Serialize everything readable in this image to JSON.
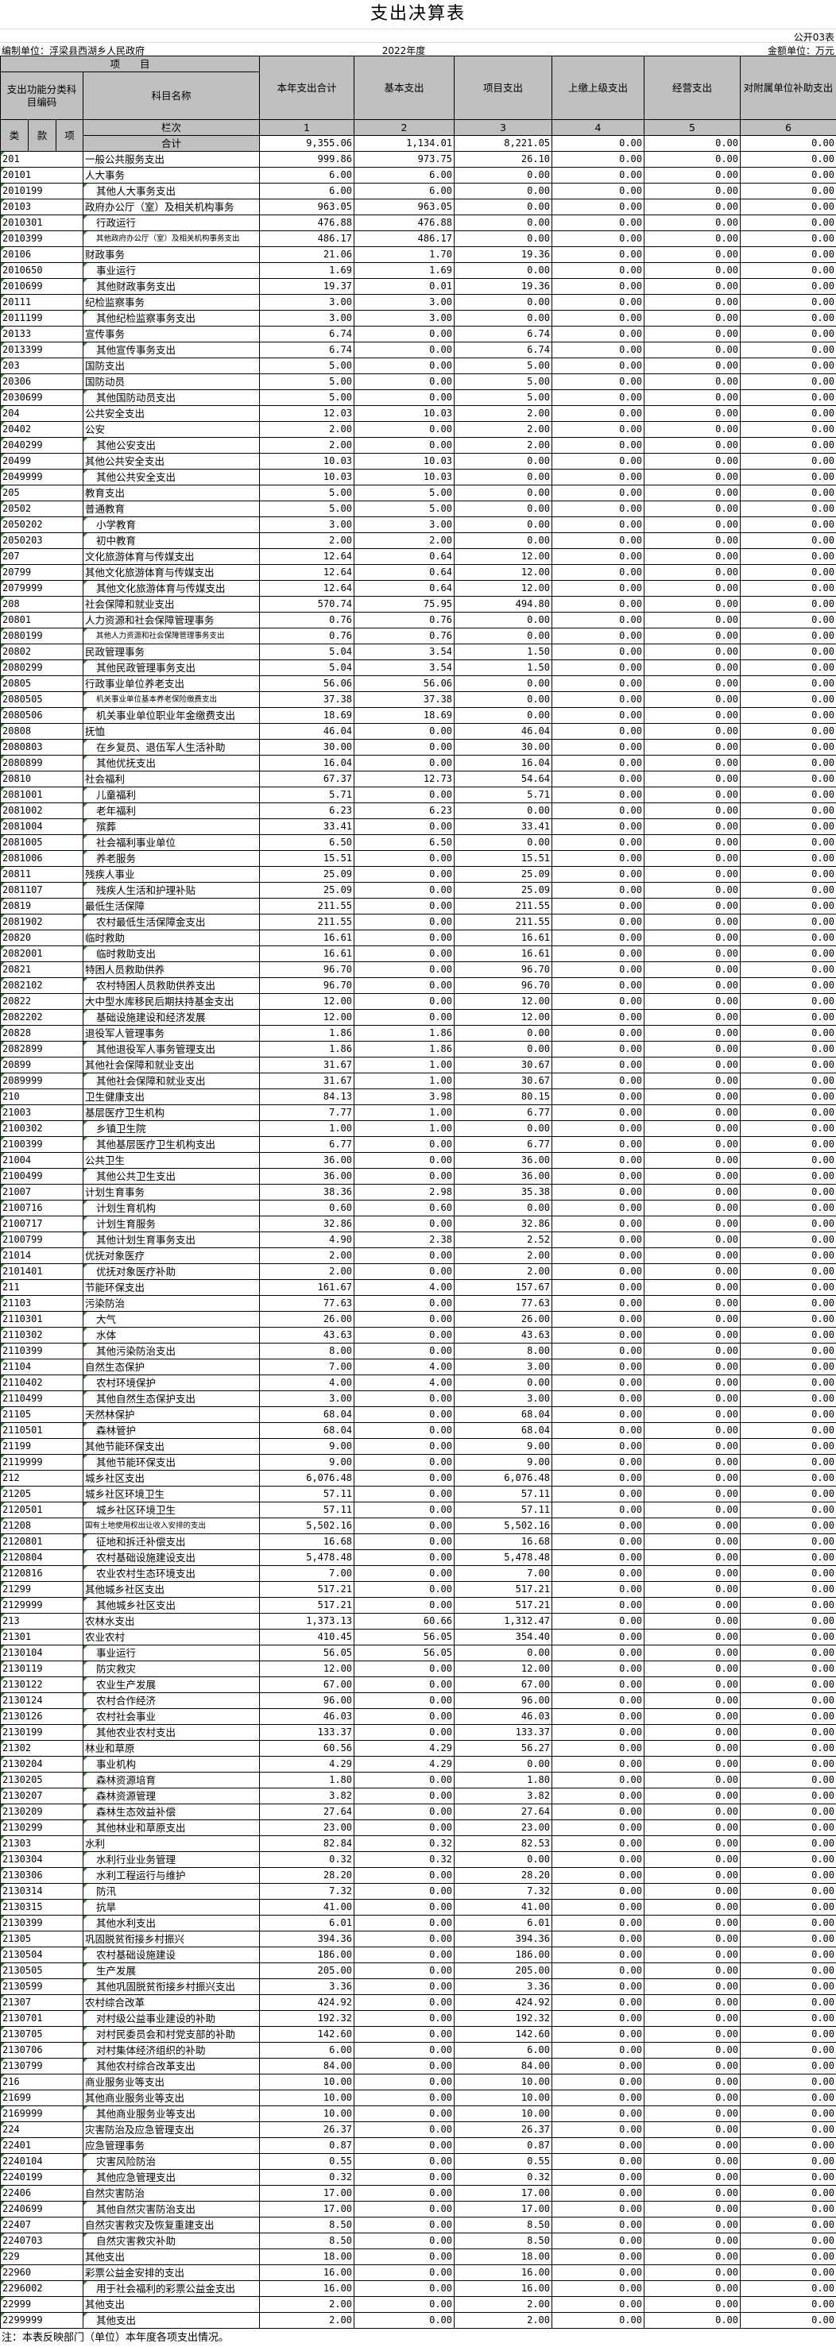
{
  "title": "支出决算表",
  "form_no": "公开03表",
  "org_label": "编制单位：浮梁县西湖乡人民政府",
  "year": "2022年度",
  "money_unit": "金额单位：万元",
  "header": {
    "project": "项　　目",
    "code_group": "支出功能分类科目编码",
    "name": "科目名称",
    "columns": [
      "本年支出合计",
      "基本支出",
      "项目支出",
      "上缴上级支出",
      "经营支出",
      "对附属单位补助支出"
    ],
    "lei": "类",
    "kuan": "款",
    "xiang": "项",
    "lanci": "栏次",
    "col_indices": [
      "1",
      "2",
      "3",
      "4",
      "5",
      "6"
    ]
  },
  "total": {
    "label": "合计",
    "values": [
      "9,355.06",
      "1,134.01",
      "8,221.05",
      "0.00",
      "0.00",
      "0.00"
    ]
  },
  "rows": [
    [
      "201",
      "一般公共服务支出",
      "999.86",
      "973.75",
      "26.10",
      "0.00",
      "0.00",
      "0.00"
    ],
    [
      "20101",
      "人大事务",
      "6.00",
      "6.00",
      "0.00",
      "0.00",
      "0.00",
      "0.00"
    ],
    [
      "2010199",
      "其他人大事务支出",
      "6.00",
      "6.00",
      "0.00",
      "0.00",
      "0.00",
      "0.00"
    ],
    [
      "20103",
      "政府办公厅（室）及相关机构事务",
      "963.05",
      "963.05",
      "0.00",
      "0.00",
      "0.00",
      "0.00"
    ],
    [
      "2010301",
      "行政运行",
      "476.88",
      "476.88",
      "0.00",
      "0.00",
      "0.00",
      "0.00"
    ],
    [
      "2010399",
      "其他政府办公厅（室）及相关机构事务支出",
      "486.17",
      "486.17",
      "0.00",
      "0.00",
      "0.00",
      "0.00"
    ],
    [
      "20106",
      "财政事务",
      "21.06",
      "1.70",
      "19.36",
      "0.00",
      "0.00",
      "0.00"
    ],
    [
      "2010650",
      "事业运行",
      "1.69",
      "1.69",
      "0.00",
      "0.00",
      "0.00",
      "0.00"
    ],
    [
      "2010699",
      "其他财政事务支出",
      "19.37",
      "0.01",
      "19.36",
      "0.00",
      "0.00",
      "0.00"
    ],
    [
      "20111",
      "纪检监察事务",
      "3.00",
      "3.00",
      "0.00",
      "0.00",
      "0.00",
      "0.00"
    ],
    [
      "2011199",
      "其他纪检监察事务支出",
      "3.00",
      "3.00",
      "0.00",
      "0.00",
      "0.00",
      "0.00"
    ],
    [
      "20133",
      "宣传事务",
      "6.74",
      "0.00",
      "6.74",
      "0.00",
      "0.00",
      "0.00"
    ],
    [
      "2013399",
      "其他宣传事务支出",
      "6.74",
      "0.00",
      "6.74",
      "0.00",
      "0.00",
      "0.00"
    ],
    [
      "203",
      "国防支出",
      "5.00",
      "0.00",
      "5.00",
      "0.00",
      "0.00",
      "0.00"
    ],
    [
      "20306",
      "国防动员",
      "5.00",
      "0.00",
      "5.00",
      "0.00",
      "0.00",
      "0.00"
    ],
    [
      "2030699",
      "其他国防动员支出",
      "5.00",
      "0.00",
      "5.00",
      "0.00",
      "0.00",
      "0.00"
    ],
    [
      "204",
      "公共安全支出",
      "12.03",
      "10.03",
      "2.00",
      "0.00",
      "0.00",
      "0.00"
    ],
    [
      "20402",
      "公安",
      "2.00",
      "0.00",
      "2.00",
      "0.00",
      "0.00",
      "0.00"
    ],
    [
      "2040299",
      "其他公安支出",
      "2.00",
      "0.00",
      "2.00",
      "0.00",
      "0.00",
      "0.00"
    ],
    [
      "20499",
      "其他公共安全支出",
      "10.03",
      "10.03",
      "0.00",
      "0.00",
      "0.00",
      "0.00"
    ],
    [
      "2049999",
      "其他公共安全支出",
      "10.03",
      "10.03",
      "0.00",
      "0.00",
      "0.00",
      "0.00"
    ],
    [
      "205",
      "教育支出",
      "5.00",
      "5.00",
      "0.00",
      "0.00",
      "0.00",
      "0.00"
    ],
    [
      "20502",
      "普通教育",
      "5.00",
      "5.00",
      "0.00",
      "0.00",
      "0.00",
      "0.00"
    ],
    [
      "2050202",
      "小学教育",
      "3.00",
      "3.00",
      "0.00",
      "0.00",
      "0.00",
      "0.00"
    ],
    [
      "2050203",
      "初中教育",
      "2.00",
      "2.00",
      "0.00",
      "0.00",
      "0.00",
      "0.00"
    ],
    [
      "207",
      "文化旅游体育与传媒支出",
      "12.64",
      "0.64",
      "12.00",
      "0.00",
      "0.00",
      "0.00"
    ],
    [
      "20799",
      "其他文化旅游体育与传媒支出",
      "12.64",
      "0.64",
      "12.00",
      "0.00",
      "0.00",
      "0.00"
    ],
    [
      "2079999",
      "其他文化旅游体育与传媒支出",
      "12.64",
      "0.64",
      "12.00",
      "0.00",
      "0.00",
      "0.00"
    ],
    [
      "208",
      "社会保障和就业支出",
      "570.74",
      "75.95",
      "494.80",
      "0.00",
      "0.00",
      "0.00"
    ],
    [
      "20801",
      "人力资源和社会保障管理事务",
      "0.76",
      "0.76",
      "0.00",
      "0.00",
      "0.00",
      "0.00"
    ],
    [
      "2080199",
      "其他人力资源和社会保障管理事务支出",
      "0.76",
      "0.76",
      "0.00",
      "0.00",
      "0.00",
      "0.00"
    ],
    [
      "20802",
      "民政管理事务",
      "5.04",
      "3.54",
      "1.50",
      "0.00",
      "0.00",
      "0.00"
    ],
    [
      "2080299",
      "其他民政管理事务支出",
      "5.04",
      "3.54",
      "1.50",
      "0.00",
      "0.00",
      "0.00"
    ],
    [
      "20805",
      "行政事业单位养老支出",
      "56.06",
      "56.06",
      "0.00",
      "0.00",
      "0.00",
      "0.00"
    ],
    [
      "2080505",
      "机关事业单位基本养老保险缴费支出",
      "37.38",
      "37.38",
      "0.00",
      "0.00",
      "0.00",
      "0.00"
    ],
    [
      "2080506",
      "机关事业单位职业年金缴费支出",
      "18.69",
      "18.69",
      "0.00",
      "0.00",
      "0.00",
      "0.00"
    ],
    [
      "20808",
      "抚恤",
      "46.04",
      "0.00",
      "46.04",
      "0.00",
      "0.00",
      "0.00"
    ],
    [
      "2080803",
      "在乡复员、退伍军人生活补助",
      "30.00",
      "0.00",
      "30.00",
      "0.00",
      "0.00",
      "0.00"
    ],
    [
      "2080899",
      "其他优抚支出",
      "16.04",
      "0.00",
      "16.04",
      "0.00",
      "0.00",
      "0.00"
    ],
    [
      "20810",
      "社会福利",
      "67.37",
      "12.73",
      "54.64",
      "0.00",
      "0.00",
      "0.00"
    ],
    [
      "2081001",
      "儿童福利",
      "5.71",
      "0.00",
      "5.71",
      "0.00",
      "0.00",
      "0.00"
    ],
    [
      "2081002",
      "老年福利",
      "6.23",
      "6.23",
      "0.00",
      "0.00",
      "0.00",
      "0.00"
    ],
    [
      "2081004",
      "殡葬",
      "33.41",
      "0.00",
      "33.41",
      "0.00",
      "0.00",
      "0.00"
    ],
    [
      "2081005",
      "社会福利事业单位",
      "6.50",
      "6.50",
      "0.00",
      "0.00",
      "0.00",
      "0.00"
    ],
    [
      "2081006",
      "养老服务",
      "15.51",
      "0.00",
      "15.51",
      "0.00",
      "0.00",
      "0.00"
    ],
    [
      "20811",
      "残疾人事业",
      "25.09",
      "0.00",
      "25.09",
      "0.00",
      "0.00",
      "0.00"
    ],
    [
      "2081107",
      "残疾人生活和护理补贴",
      "25.09",
      "0.00",
      "25.09",
      "0.00",
      "0.00",
      "0.00"
    ],
    [
      "20819",
      "最低生活保障",
      "211.55",
      "0.00",
      "211.55",
      "0.00",
      "0.00",
      "0.00"
    ],
    [
      "2081902",
      "农村最低生活保障金支出",
      "211.55",
      "0.00",
      "211.55",
      "0.00",
      "0.00",
      "0.00"
    ],
    [
      "20820",
      "临时救助",
      "16.61",
      "0.00",
      "16.61",
      "0.00",
      "0.00",
      "0.00"
    ],
    [
      "2082001",
      "临时救助支出",
      "16.61",
      "0.00",
      "16.61",
      "0.00",
      "0.00",
      "0.00"
    ],
    [
      "20821",
      "特困人员救助供养",
      "96.70",
      "0.00",
      "96.70",
      "0.00",
      "0.00",
      "0.00"
    ],
    [
      "2082102",
      "农村特困人员救助供养支出",
      "96.70",
      "0.00",
      "96.70",
      "0.00",
      "0.00",
      "0.00"
    ],
    [
      "20822",
      "大中型水库移民后期扶持基金支出",
      "12.00",
      "0.00",
      "12.00",
      "0.00",
      "0.00",
      "0.00"
    ],
    [
      "2082202",
      "基础设施建设和经济发展",
      "12.00",
      "0.00",
      "12.00",
      "0.00",
      "0.00",
      "0.00"
    ],
    [
      "20828",
      "退役军人管理事务",
      "1.86",
      "1.86",
      "0.00",
      "0.00",
      "0.00",
      "0.00"
    ],
    [
      "2082899",
      "其他退役军人事务管理支出",
      "1.86",
      "1.86",
      "0.00",
      "0.00",
      "0.00",
      "0.00"
    ],
    [
      "20899",
      "其他社会保障和就业支出",
      "31.67",
      "1.00",
      "30.67",
      "0.00",
      "0.00",
      "0.00"
    ],
    [
      "2089999",
      "其他社会保障和就业支出",
      "31.67",
      "1.00",
      "30.67",
      "0.00",
      "0.00",
      "0.00"
    ],
    [
      "210",
      "卫生健康支出",
      "84.13",
      "3.98",
      "80.15",
      "0.00",
      "0.00",
      "0.00"
    ],
    [
      "21003",
      "基层医疗卫生机构",
      "7.77",
      "1.00",
      "6.77",
      "0.00",
      "0.00",
      "0.00"
    ],
    [
      "2100302",
      "乡镇卫生院",
      "1.00",
      "1.00",
      "0.00",
      "0.00",
      "0.00",
      "0.00"
    ],
    [
      "2100399",
      "其他基层医疗卫生机构支出",
      "6.77",
      "0.00",
      "6.77",
      "0.00",
      "0.00",
      "0.00"
    ],
    [
      "21004",
      "公共卫生",
      "36.00",
      "0.00",
      "36.00",
      "0.00",
      "0.00",
      "0.00"
    ],
    [
      "2100499",
      "其他公共卫生支出",
      "36.00",
      "0.00",
      "36.00",
      "0.00",
      "0.00",
      "0.00"
    ],
    [
      "21007",
      "计划生育事务",
      "38.36",
      "2.98",
      "35.38",
      "0.00",
      "0.00",
      "0.00"
    ],
    [
      "2100716",
      "计划生育机构",
      "0.60",
      "0.60",
      "0.00",
      "0.00",
      "0.00",
      "0.00"
    ],
    [
      "2100717",
      "计划生育服务",
      "32.86",
      "0.00",
      "32.86",
      "0.00",
      "0.00",
      "0.00"
    ],
    [
      "2100799",
      "其他计划生育事务支出",
      "4.90",
      "2.38",
      "2.52",
      "0.00",
      "0.00",
      "0.00"
    ],
    [
      "21014",
      "优抚对象医疗",
      "2.00",
      "0.00",
      "2.00",
      "0.00",
      "0.00",
      "0.00"
    ],
    [
      "2101401",
      "优抚对象医疗补助",
      "2.00",
      "0.00",
      "2.00",
      "0.00",
      "0.00",
      "0.00"
    ],
    [
      "211",
      "节能环保支出",
      "161.67",
      "4.00",
      "157.67",
      "0.00",
      "0.00",
      "0.00"
    ],
    [
      "21103",
      "污染防治",
      "77.63",
      "0.00",
      "77.63",
      "0.00",
      "0.00",
      "0.00"
    ],
    [
      "2110301",
      "大气",
      "26.00",
      "0.00",
      "26.00",
      "0.00",
      "0.00",
      "0.00"
    ],
    [
      "2110302",
      "水体",
      "43.63",
      "0.00",
      "43.63",
      "0.00",
      "0.00",
      "0.00"
    ],
    [
      "2110399",
      "其他污染防治支出",
      "8.00",
      "0.00",
      "8.00",
      "0.00",
      "0.00",
      "0.00"
    ],
    [
      "21104",
      "自然生态保护",
      "7.00",
      "4.00",
      "3.00",
      "0.00",
      "0.00",
      "0.00"
    ],
    [
      "2110402",
      "农村环境保护",
      "4.00",
      "4.00",
      "0.00",
      "0.00",
      "0.00",
      "0.00"
    ],
    [
      "2110499",
      "其他自然生态保护支出",
      "3.00",
      "0.00",
      "3.00",
      "0.00",
      "0.00",
      "0.00"
    ],
    [
      "21105",
      "天然林保护",
      "68.04",
      "0.00",
      "68.04",
      "0.00",
      "0.00",
      "0.00"
    ],
    [
      "2110501",
      "森林管护",
      "68.04",
      "0.00",
      "68.04",
      "0.00",
      "0.00",
      "0.00"
    ],
    [
      "21199",
      "其他节能环保支出",
      "9.00",
      "0.00",
      "9.00",
      "0.00",
      "0.00",
      "0.00"
    ],
    [
      "2119999",
      "其他节能环保支出",
      "9.00",
      "0.00",
      "9.00",
      "0.00",
      "0.00",
      "0.00"
    ],
    [
      "212",
      "城乡社区支出",
      "6,076.48",
      "0.00",
      "6,076.48",
      "0.00",
      "0.00",
      "0.00"
    ],
    [
      "21205",
      "城乡社区环境卫生",
      "57.11",
      "0.00",
      "57.11",
      "0.00",
      "0.00",
      "0.00"
    ],
    [
      "2120501",
      "城乡社区环境卫生",
      "57.11",
      "0.00",
      "57.11",
      "0.00",
      "0.00",
      "0.00"
    ],
    [
      "21208",
      "国有土地使用权出让收入安排的支出",
      "5,502.16",
      "0.00",
      "5,502.16",
      "0.00",
      "0.00",
      "0.00"
    ],
    [
      "2120801",
      "征地和拆迁补偿支出",
      "16.68",
      "0.00",
      "16.68",
      "0.00",
      "0.00",
      "0.00"
    ],
    [
      "2120804",
      "农村基础设施建设支出",
      "5,478.48",
      "0.00",
      "5,478.48",
      "0.00",
      "0.00",
      "0.00"
    ],
    [
      "2120816",
      "农业农村生态环境支出",
      "7.00",
      "0.00",
      "7.00",
      "0.00",
      "0.00",
      "0.00"
    ],
    [
      "21299",
      "其他城乡社区支出",
      "517.21",
      "0.00",
      "517.21",
      "0.00",
      "0.00",
      "0.00"
    ],
    [
      "2129999",
      "其他城乡社区支出",
      "517.21",
      "0.00",
      "517.21",
      "0.00",
      "0.00",
      "0.00"
    ],
    [
      "213",
      "农林水支出",
      "1,373.13",
      "60.66",
      "1,312.47",
      "0.00",
      "0.00",
      "0.00"
    ],
    [
      "21301",
      "农业农村",
      "410.45",
      "56.05",
      "354.40",
      "0.00",
      "0.00",
      "0.00"
    ],
    [
      "2130104",
      "事业运行",
      "56.05",
      "56.05",
      "0.00",
      "0.00",
      "0.00",
      "0.00"
    ],
    [
      "2130119",
      "防灾救灾",
      "12.00",
      "0.00",
      "12.00",
      "0.00",
      "0.00",
      "0.00"
    ],
    [
      "2130122",
      "农业生产发展",
      "67.00",
      "0.00",
      "67.00",
      "0.00",
      "0.00",
      "0.00"
    ],
    [
      "2130124",
      "农村合作经济",
      "96.00",
      "0.00",
      "96.00",
      "0.00",
      "0.00",
      "0.00"
    ],
    [
      "2130126",
      "农村社会事业",
      "46.03",
      "0.00",
      "46.03",
      "0.00",
      "0.00",
      "0.00"
    ],
    [
      "2130199",
      "其他农业农村支出",
      "133.37",
      "0.00",
      "133.37",
      "0.00",
      "0.00",
      "0.00"
    ],
    [
      "21302",
      "林业和草原",
      "60.56",
      "4.29",
      "56.27",
      "0.00",
      "0.00",
      "0.00"
    ],
    [
      "2130204",
      "事业机构",
      "4.29",
      "4.29",
      "0.00",
      "0.00",
      "0.00",
      "0.00"
    ],
    [
      "2130205",
      "森林资源培育",
      "1.80",
      "0.00",
      "1.80",
      "0.00",
      "0.00",
      "0.00"
    ],
    [
      "2130207",
      "森林资源管理",
      "3.82",
      "0.00",
      "3.82",
      "0.00",
      "0.00",
      "0.00"
    ],
    [
      "2130209",
      "森林生态效益补偿",
      "27.64",
      "0.00",
      "27.64",
      "0.00",
      "0.00",
      "0.00"
    ],
    [
      "2130299",
      "其他林业和草原支出",
      "23.00",
      "0.00",
      "23.00",
      "0.00",
      "0.00",
      "0.00"
    ],
    [
      "21303",
      "水利",
      "82.84",
      "0.32",
      "82.53",
      "0.00",
      "0.00",
      "0.00"
    ],
    [
      "2130304",
      "水利行业业务管理",
      "0.32",
      "0.32",
      "0.00",
      "0.00",
      "0.00",
      "0.00"
    ],
    [
      "2130306",
      "水利工程运行与维护",
      "28.20",
      "0.00",
      "28.20",
      "0.00",
      "0.00",
      "0.00"
    ],
    [
      "2130314",
      "防汛",
      "7.32",
      "0.00",
      "7.32",
      "0.00",
      "0.00",
      "0.00"
    ],
    [
      "2130315",
      "抗旱",
      "41.00",
      "0.00",
      "41.00",
      "0.00",
      "0.00",
      "0.00"
    ],
    [
      "2130399",
      "其他水利支出",
      "6.01",
      "0.00",
      "6.01",
      "0.00",
      "0.00",
      "0.00"
    ],
    [
      "21305",
      "巩固脱贫衔接乡村振兴",
      "394.36",
      "0.00",
      "394.36",
      "0.00",
      "0.00",
      "0.00"
    ],
    [
      "2130504",
      "农村基础设施建设",
      "186.00",
      "0.00",
      "186.00",
      "0.00",
      "0.00",
      "0.00"
    ],
    [
      "2130505",
      "生产发展",
      "205.00",
      "0.00",
      "205.00",
      "0.00",
      "0.00",
      "0.00"
    ],
    [
      "2130599",
      "其他巩固脱贫衔接乡村振兴支出",
      "3.36",
      "0.00",
      "3.36",
      "0.00",
      "0.00",
      "0.00"
    ],
    [
      "21307",
      "农村综合改革",
      "424.92",
      "0.00",
      "424.92",
      "0.00",
      "0.00",
      "0.00"
    ],
    [
      "2130701",
      "对村级公益事业建设的补助",
      "192.32",
      "0.00",
      "192.32",
      "0.00",
      "0.00",
      "0.00"
    ],
    [
      "2130705",
      "对村民委员会和村党支部的补助",
      "142.60",
      "0.00",
      "142.60",
      "0.00",
      "0.00",
      "0.00"
    ],
    [
      "2130706",
      "对村集体经济组织的补助",
      "6.00",
      "0.00",
      "6.00",
      "0.00",
      "0.00",
      "0.00"
    ],
    [
      "2130799",
      "其他农村综合改革支出",
      "84.00",
      "0.00",
      "84.00",
      "0.00",
      "0.00",
      "0.00"
    ],
    [
      "216",
      "商业服务业等支出",
      "10.00",
      "0.00",
      "10.00",
      "0.00",
      "0.00",
      "0.00"
    ],
    [
      "21699",
      "其他商业服务业等支出",
      "10.00",
      "0.00",
      "10.00",
      "0.00",
      "0.00",
      "0.00"
    ],
    [
      "2169999",
      "其他商业服务业等支出",
      "10.00",
      "0.00",
      "10.00",
      "0.00",
      "0.00",
      "0.00"
    ],
    [
      "224",
      "灾害防治及应急管理支出",
      "26.37",
      "0.00",
      "26.37",
      "0.00",
      "0.00",
      "0.00"
    ],
    [
      "22401",
      "应急管理事务",
      "0.87",
      "0.00",
      "0.87",
      "0.00",
      "0.00",
      "0.00"
    ],
    [
      "2240104",
      "灾害风险防治",
      "0.55",
      "0.00",
      "0.55",
      "0.00",
      "0.00",
      "0.00"
    ],
    [
      "2240199",
      "其他应急管理支出",
      "0.32",
      "0.00",
      "0.32",
      "0.00",
      "0.00",
      "0.00"
    ],
    [
      "22406",
      "自然灾害防治",
      "17.00",
      "0.00",
      "17.00",
      "0.00",
      "0.00",
      "0.00"
    ],
    [
      "2240699",
      "其他自然灾害防治支出",
      "17.00",
      "0.00",
      "17.00",
      "0.00",
      "0.00",
      "0.00"
    ],
    [
      "22407",
      "自然灾害救灾及恢复重建支出",
      "8.50",
      "0.00",
      "8.50",
      "0.00",
      "0.00",
      "0.00"
    ],
    [
      "2240703",
      "自然灾害救灾补助",
      "8.50",
      "0.00",
      "8.50",
      "0.00",
      "0.00",
      "0.00"
    ],
    [
      "229",
      "其他支出",
      "18.00",
      "0.00",
      "18.00",
      "0.00",
      "0.00",
      "0.00"
    ],
    [
      "22960",
      "彩票公益金安排的支出",
      "16.00",
      "0.00",
      "16.00",
      "0.00",
      "0.00",
      "0.00"
    ],
    [
      "2296002",
      "用于社会福利的彩票公益金支出",
      "16.00",
      "0.00",
      "16.00",
      "0.00",
      "0.00",
      "0.00"
    ],
    [
      "22999",
      "其他支出",
      "2.00",
      "0.00",
      "2.00",
      "0.00",
      "0.00",
      "0.00"
    ],
    [
      "2299999",
      "其他支出",
      "2.00",
      "0.00",
      "2.00",
      "0.00",
      "0.00",
      "0.00"
    ]
  ],
  "note": "注：本表反映部门（单位）本年度各项支出情况。",
  "colors": {
    "header_bg": "#c0c0c0",
    "cell_marker": "#1a9a1a"
  }
}
